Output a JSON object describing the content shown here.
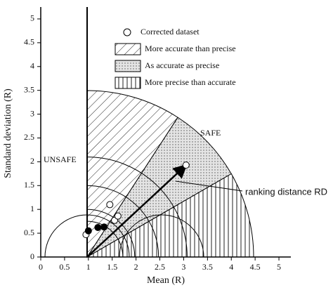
{
  "chart_data": {
    "type": "scatter",
    "xlabel": "Mean (R)",
    "ylabel": "Standard deviation (R)",
    "xlim": [
      0,
      5.25
    ],
    "ylim": [
      0,
      5.25
    ],
    "xticks": [
      0,
      0.5,
      1,
      1.5,
      2,
      2.5,
      3,
      3.5,
      4,
      4.5,
      5
    ],
    "yticks": [
      0,
      0.5,
      1,
      1.5,
      2,
      2.5,
      3,
      3.5,
      4,
      4.5,
      5
    ],
    "series": [
      {
        "name": "Corrected dataset",
        "color": "#ffffff",
        "x": [
          0.95,
          1.45,
          1.55,
          1.62,
          3.05
        ],
        "values": [
          0.47,
          1.1,
          0.77,
          0.86,
          1.93
        ]
      },
      {
        "color": "#000000",
        "x": [
          1.0,
          1.2,
          1.33
        ],
        "values": [
          0.55,
          0.62,
          0.63
        ]
      }
    ],
    "regions": [
      {
        "name": "More accurate than precise",
        "pattern": "diagonal"
      },
      {
        "name": "As accurate as precise",
        "pattern": "dots"
      },
      {
        "name": "More precise than accurate",
        "pattern": "vertical"
      }
    ],
    "annotations": [
      "UNSAFE",
      "SAFE",
      "ranking distance RD"
    ]
  }
}
